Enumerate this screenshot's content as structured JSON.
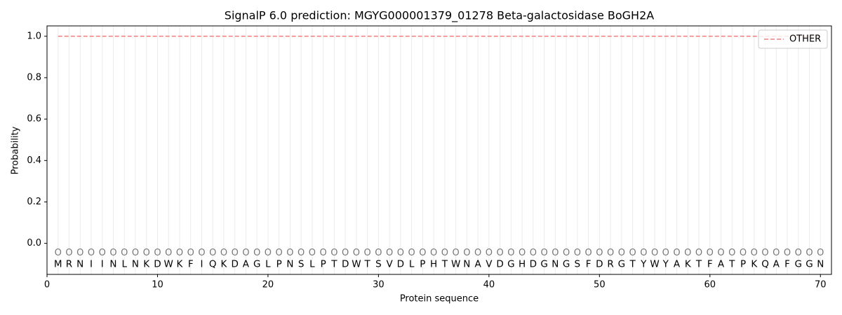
{
  "chart_data": {
    "type": "line",
    "title": "SignalP 6.0 prediction: MGYG000001379_01278 Beta-galactosidase BoGH2A",
    "xlabel": "Protein sequence",
    "ylabel": "Probability",
    "x": [
      1,
      2,
      3,
      4,
      5,
      6,
      7,
      8,
      9,
      10,
      11,
      12,
      13,
      14,
      15,
      16,
      17,
      18,
      19,
      20,
      21,
      22,
      23,
      24,
      25,
      26,
      27,
      28,
      29,
      30,
      31,
      32,
      33,
      34,
      35,
      36,
      37,
      38,
      39,
      40,
      41,
      42,
      43,
      44,
      45,
      46,
      47,
      48,
      49,
      50,
      51,
      52,
      53,
      54,
      55,
      56,
      57,
      58,
      59,
      60,
      61,
      62,
      63,
      64,
      65,
      66,
      67,
      68,
      69,
      70
    ],
    "sequence": [
      "M",
      "R",
      "N",
      "I",
      "I",
      "N",
      "L",
      "N",
      "K",
      "D",
      "W",
      "K",
      "F",
      "I",
      "Q",
      "K",
      "D",
      "A",
      "G",
      "L",
      "P",
      "N",
      "S",
      "L",
      "P",
      "T",
      "D",
      "W",
      "T",
      "S",
      "V",
      "D",
      "L",
      "P",
      "H",
      "T",
      "W",
      "N",
      "A",
      "V",
      "D",
      "G",
      "H",
      "D",
      "G",
      "N",
      "G",
      "S",
      "F",
      "D",
      "R",
      "G",
      "T",
      "Y",
      "W",
      "Y",
      "A",
      "K",
      "T",
      "F",
      "A",
      "T",
      "P",
      "K",
      "Q",
      "A",
      "F",
      "G",
      "G",
      "N"
    ],
    "annotations": [
      "O",
      "O",
      "O",
      "O",
      "O",
      "O",
      "O",
      "O",
      "O",
      "O",
      "O",
      "O",
      "O",
      "O",
      "O",
      "O",
      "O",
      "O",
      "O",
      "O",
      "O",
      "O",
      "O",
      "O",
      "O",
      "O",
      "O",
      "O",
      "O",
      "O",
      "O",
      "O",
      "O",
      "O",
      "O",
      "O",
      "O",
      "O",
      "O",
      "O",
      "O",
      "O",
      "O",
      "O",
      "O",
      "O",
      "O",
      "O",
      "O",
      "O",
      "O",
      "O",
      "O",
      "O",
      "O",
      "O",
      "O",
      "O",
      "O",
      "O",
      "O",
      "O",
      "O",
      "O",
      "O",
      "O",
      "O",
      "O",
      "O",
      "O"
    ],
    "series": [
      {
        "name": "OTHER",
        "color": "#f08080",
        "values": [
          1,
          1,
          1,
          1,
          1,
          1,
          1,
          1,
          1,
          1,
          1,
          1,
          1,
          1,
          1,
          1,
          1,
          1,
          1,
          1,
          1,
          1,
          1,
          1,
          1,
          1,
          1,
          1,
          1,
          1,
          1,
          1,
          1,
          1,
          1,
          1,
          1,
          1,
          1,
          1,
          1,
          1,
          1,
          1,
          1,
          1,
          1,
          1,
          1,
          1,
          1,
          1,
          1,
          1,
          1,
          1,
          1,
          1,
          1,
          1,
          1,
          1,
          1,
          1,
          1,
          1,
          1,
          1,
          1,
          1
        ]
      }
    ],
    "xlim": [
      0,
      71
    ],
    "ylim": [
      -0.15,
      1.05
    ],
    "xticks": [
      0,
      10,
      20,
      30,
      40,
      50,
      60,
      70
    ],
    "yticks": [
      {
        "value": 0,
        "label": "0.0"
      },
      {
        "value": 0.2,
        "label": "0.2"
      },
      {
        "value": 0.4,
        "label": "0.4"
      },
      {
        "value": 0.6,
        "label": "0.6"
      },
      {
        "value": 0.8,
        "label": "0.8"
      },
      {
        "value": 1,
        "label": "1.0"
      }
    ],
    "legend": "upper right"
  }
}
